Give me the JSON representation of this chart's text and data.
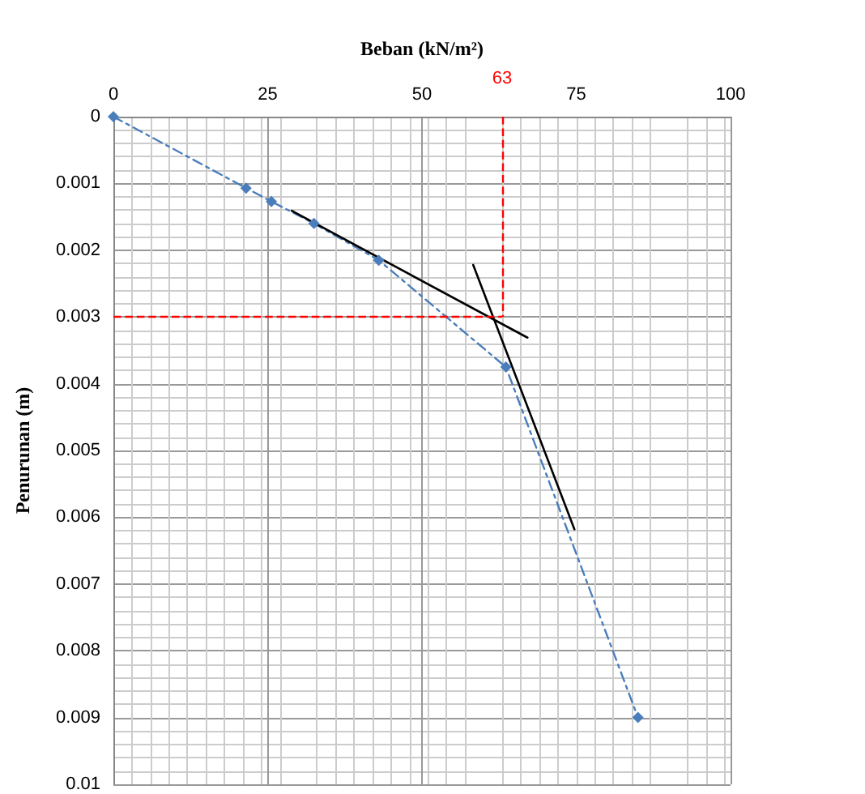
{
  "chart_data": {
    "type": "line",
    "xlabel": "Beban (kN/m²)",
    "ylabel": "Penurunan (m)",
    "xlim": [
      0,
      100
    ],
    "xticks": [
      0,
      25,
      50,
      75,
      100
    ],
    "ylim": [
      0.01,
      0
    ],
    "yticks": [
      0,
      0.001,
      0.002,
      0.003,
      0.004,
      0.005,
      0.006,
      0.007,
      0.008,
      0.009,
      0.01
    ],
    "grid": true,
    "series": [
      {
        "color": "#4a7ebb",
        "marker": "diamond",
        "line_style": "dashed",
        "x": [
          0,
          21.5,
          25.6,
          32.5,
          43,
          63.6,
          85
        ],
        "values": [
          0,
          0.00107,
          0.00127,
          0.0016,
          0.00215,
          0.00375,
          0.009
        ]
      },
      {
        "type": "line",
        "color": "#000000",
        "marker": "none",
        "line_style": "solid",
        "x": [
          28.9,
          67.1
        ],
        "values": [
          0.00141,
          0.00331
        ]
      },
      {
        "type": "line",
        "color": "#000000",
        "marker": "none",
        "line_style": "solid",
        "x": [
          58.3,
          74.7
        ],
        "values": [
          0.00222,
          0.00618
        ]
      }
    ],
    "ref_lines": [
      {
        "axis": "x",
        "value": 63,
        "label": "63",
        "color": "#ff0000",
        "line_style": "dashed"
      },
      {
        "axis": "y",
        "value": 0.003,
        "color": "#ff0000",
        "line_style": "dashed"
      }
    ]
  }
}
